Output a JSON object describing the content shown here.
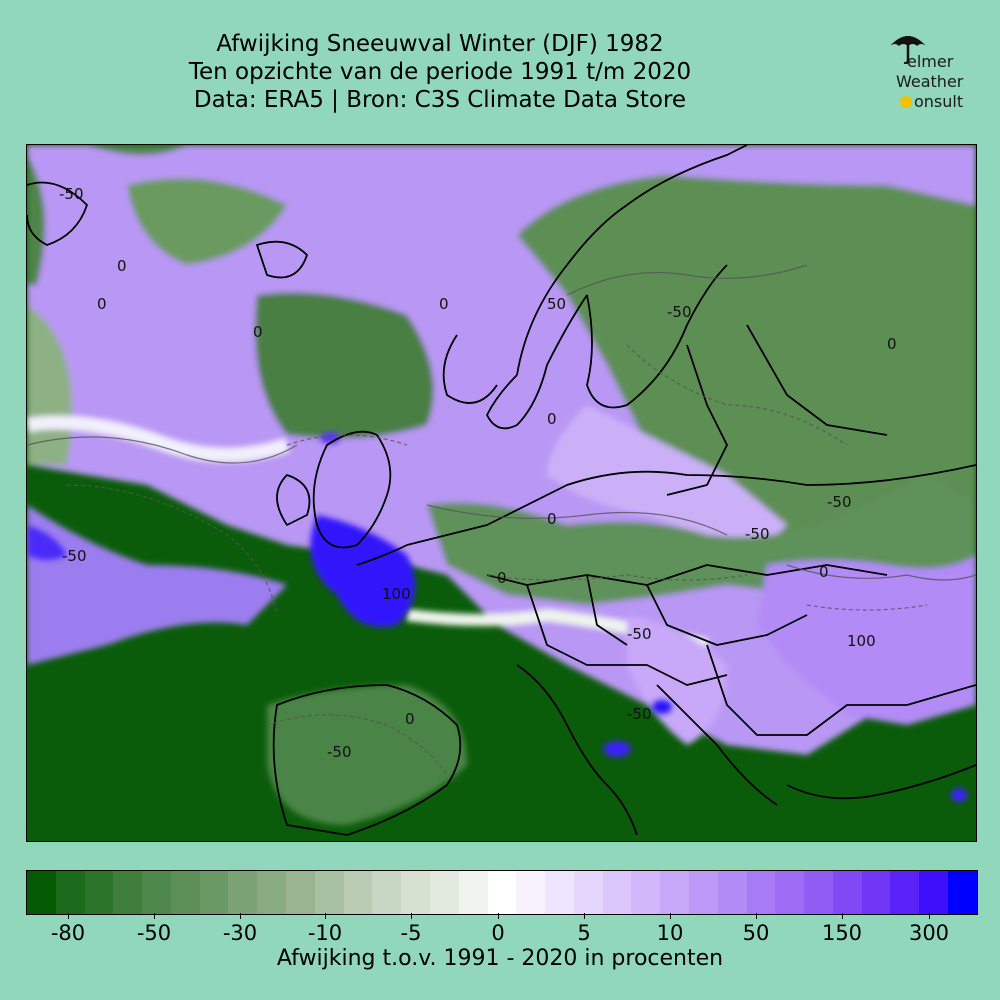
{
  "title": {
    "line1": "Afwijking Sneeuwval Winter (DJF) 1982",
    "line2": "Ten opzichte van de periode 1991 t/m 2020",
    "line3": "Data: ERA5 | Bron: C3S Climate Data Store"
  },
  "logo": {
    "line1": "elmer",
    "line2": "Weather",
    "line3": "onsult",
    "icon": "umbrella-icon"
  },
  "map": {
    "contour_labels": [
      "-50",
      "0",
      "-50",
      "0",
      "0",
      "-50",
      "0",
      "-50",
      "0",
      "-50",
      "100",
      "0",
      "-50",
      "0",
      "-50",
      "100",
      "0",
      "-50",
      "0",
      "0",
      "50"
    ],
    "colors": {
      "dry_extreme": "#0a5c0a",
      "dry_mid": "#6a9a5e",
      "neutral": "#ffffff",
      "wet_mid": "#b895f5",
      "wet_extreme": "#1a12ff"
    }
  },
  "colorbar": {
    "tick_labels": [
      "-80",
      "-50",
      "-30",
      "-10",
      "-5",
      "0",
      "5",
      "10",
      "50",
      "150",
      "300"
    ],
    "label": "Afwijking t.o.v. 1991 - 2020 in procenten",
    "colors": [
      "#035a03",
      "#1c6a1c",
      "#2c7429",
      "#3f7e3a",
      "#4d874a",
      "#5c9058",
      "#6b9965",
      "#7aa273",
      "#89ab82",
      "#98b490",
      "#a9c1a3",
      "#b9ccb3",
      "#c8d7c3",
      "#d6e1d2",
      "#e2eadf",
      "#f0f4ee",
      "#ffffff",
      "#f8f2ff",
      "#efe4fe",
      "#e5d6fd",
      "#dcc7fc",
      "#d2b8fb",
      "#c8a9f9",
      "#bd9af8",
      "#b28bf7",
      "#a77bf6",
      "#9c6cf5",
      "#8f5cf4",
      "#8149f4",
      "#6f36f5",
      "#5a22f7",
      "#3d0ffa",
      "#0000ff"
    ]
  }
}
